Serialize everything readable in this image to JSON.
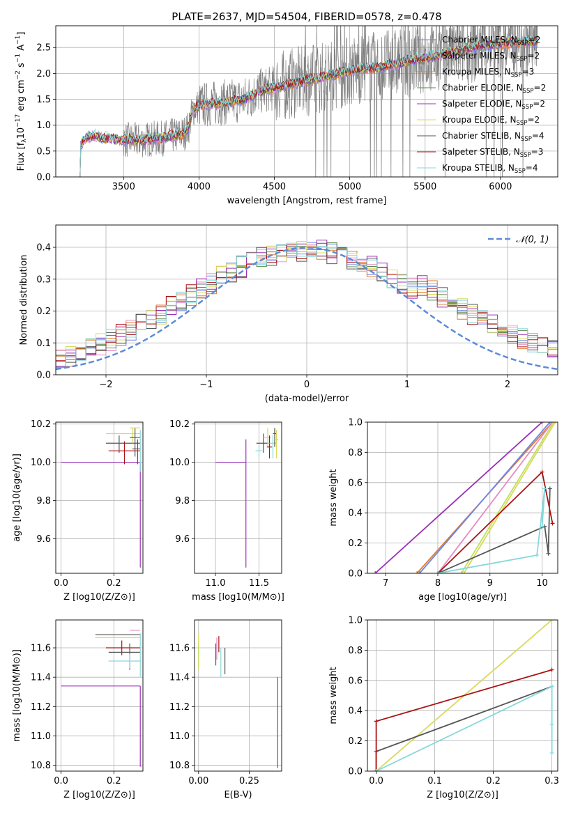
{
  "figure_title": "PLATE=2637, MJD=54504, FIBERID=0578, z=0.478",
  "colors": {
    "chabrier_miles": "#6f86e0",
    "salpeter_miles": "#e58ac6",
    "kroupa_miles": "#e07b2e",
    "chabrier_elodie": "#5a8a4a",
    "salpeter_elodie": "#9b30b8",
    "kroupa_elodie": "#d8da5a",
    "chabrier_stelib": "#555555",
    "salpeter_stelib": "#aa1414",
    "kroupa_stelib": "#86d8dc",
    "data": "#808080",
    "normal": "#5b8bd8",
    "lime": "#c0e060"
  },
  "chart_data": [
    {
      "type": "line",
      "panel": "spectrum",
      "xlabel": "wavelength [Angstrom, rest frame]",
      "ylabel": "Flux [f_λ 10^-17 erg cm^-2 s^-1 A^-1]",
      "xlim": [
        3050,
        6380
      ],
      "ylim": [
        0,
        2.92
      ],
      "xticks": [
        "3500",
        "4000",
        "4500",
        "5000",
        "5500",
        "6000"
      ],
      "yticks": [
        "0.0",
        "0.5",
        "1.0",
        "1.5",
        "2.0",
        "2.5"
      ],
      "legend_position": "right",
      "series": [
        {
          "name": "Chabrier MILES, N",
          "sub": "SSP",
          "suffix": "=2",
          "color_key": "chabrier_miles"
        },
        {
          "name": "Salpeter MILES, N",
          "sub": "SSP",
          "suffix": "=2",
          "color_key": "salpeter_miles"
        },
        {
          "name": "Kroupa MILES, N",
          "sub": "SSP",
          "suffix": "=3",
          "color_key": "kroupa_miles"
        },
        {
          "name": "Chabrier ELODIE, N",
          "sub": "SSP",
          "suffix": "=2",
          "color_key": "chabrier_elodie"
        },
        {
          "name": "Salpeter ELODIE, N",
          "sub": "SSP",
          "suffix": "=2",
          "color_key": "salpeter_elodie"
        },
        {
          "name": "Kroupa ELODIE, N",
          "sub": "SSP",
          "suffix": "=2",
          "color_key": "kroupa_elodie"
        },
        {
          "name": "Chabrier STELIB, N",
          "sub": "SSP",
          "suffix": "=4",
          "color_key": "chabrier_stelib"
        },
        {
          "name": "Salpeter STELIB, N",
          "sub": "SSP",
          "suffix": "=3",
          "color_key": "salpeter_stelib"
        },
        {
          "name": "Kroupa STELIB, N",
          "sub": "SSP",
          "suffix": "=4",
          "color_key": "kroupa_stelib"
        }
      ],
      "model_continuum": [
        [
          3210,
          0.0
        ],
        [
          3215,
          0.62
        ],
        [
          3260,
          0.78
        ],
        [
          3300,
          0.8
        ],
        [
          3350,
          0.76
        ],
        [
          3400,
          0.74
        ],
        [
          3450,
          0.72
        ],
        [
          3500,
          0.72
        ],
        [
          3550,
          0.71
        ],
        [
          3600,
          0.7
        ],
        [
          3650,
          0.72
        ],
        [
          3700,
          0.74
        ],
        [
          3750,
          0.74
        ],
        [
          3800,
          0.79
        ],
        [
          3850,
          0.8
        ],
        [
          3900,
          0.84
        ],
        [
          3930,
          0.95
        ],
        [
          3960,
          1.3
        ],
        [
          4000,
          1.38
        ],
        [
          4100,
          1.42
        ],
        [
          4200,
          1.45
        ],
        [
          4300,
          1.5
        ],
        [
          4400,
          1.65
        ],
        [
          4500,
          1.72
        ],
        [
          4600,
          1.8
        ],
        [
          4700,
          1.85
        ],
        [
          4800,
          1.92
        ],
        [
          4900,
          1.98
        ],
        [
          5000,
          2.05
        ],
        [
          5100,
          2.1
        ],
        [
          5200,
          2.12
        ],
        [
          5300,
          2.18
        ],
        [
          5400,
          2.25
        ],
        [
          5500,
          2.3
        ],
        [
          5600,
          2.36
        ],
        [
          5700,
          2.42
        ],
        [
          5800,
          2.5
        ],
        [
          5900,
          2.55
        ],
        [
          6000,
          2.58
        ],
        [
          6100,
          2.6
        ],
        [
          6200,
          2.62
        ],
        [
          6250,
          2.62
        ]
      ]
    },
    {
      "type": "histogram",
      "panel": "residuals",
      "xlabel": "(data-model)/error",
      "ylabel": "Normed distribution",
      "xlim": [
        -2.5,
        2.5
      ],
      "ylim": [
        0,
        0.47
      ],
      "xticks": [
        "−2",
        "−1",
        "0",
        "1",
        "2"
      ],
      "yticks": [
        "0.0",
        "0.1",
        "0.2",
        "0.3",
        "0.4"
      ],
      "legend": "𝒩(0, 1)",
      "legend_position": "upper right",
      "bin_width": 0.1
    },
    {
      "type": "scatter",
      "panel": "age-vs-Z",
      "xlabel": "Z [log10(Z/Z⊙)]",
      "ylabel": "age  [log10(age/yr)]",
      "xlim": [
        -0.02,
        0.31
      ],
      "ylim": [
        9.42,
        10.21
      ],
      "xticks": [
        "0.0",
        "0.2"
      ],
      "yticks": [
        "9.6",
        "9.8",
        "10.0",
        "10.2"
      ],
      "points": [
        {
          "x": 0.0,
          "xerr": [
            0.0,
            0.3
          ],
          "y": 10.0,
          "yerr": [
            0.0,
            0.0
          ],
          "color_key": "salpeter_elodie"
        },
        {
          "x": 0.3,
          "xerr": [
            0.0,
            0.0
          ],
          "y": 10.0,
          "yerr": [
            0.55,
            0.0
          ],
          "color_key": "salpeter_elodie"
        },
        {
          "x": 0.22,
          "xerr": [
            0.05,
            0.08
          ],
          "y": 10.1,
          "yerr": [
            0.05,
            0.04
          ],
          "color_key": "chabrier_stelib"
        },
        {
          "x": 0.24,
          "xerr": [
            0.06,
            0.06
          ],
          "y": 10.06,
          "yerr": [
            0.07,
            0.05
          ],
          "color_key": "salpeter_stelib"
        },
        {
          "x": 0.27,
          "xerr": [
            0.1,
            0.03
          ],
          "y": 10.15,
          "yerr": [
            0.05,
            0.03
          ],
          "color_key": "kroupa_elodie"
        },
        {
          "x": 0.28,
          "xerr": [
            0.02,
            0.02
          ],
          "y": 10.13,
          "yerr": [
            0.1,
            0.05
          ],
          "color_key": "chabrier_stelib"
        },
        {
          "x": 0.3,
          "xerr": [
            0.0,
            0.0
          ],
          "y": 10.1,
          "yerr": [
            0.15,
            0.07
          ],
          "color_key": "kroupa_stelib"
        },
        {
          "x": 0.29,
          "xerr": [
            0.03,
            0.01
          ],
          "y": 10.18,
          "yerr": [
            0.0,
            0.0
          ],
          "color_key": "kroupa_elodie"
        },
        {
          "x": 0.29,
          "xerr": [
            0.02,
            0.01
          ],
          "y": 10.07,
          "yerr": [
            0.08,
            0.05
          ],
          "color_key": "chabrier_stelib"
        }
      ]
    },
    {
      "type": "scatter",
      "panel": "age-vs-mass",
      "xlabel": "mass [log10(M/M⊙)]",
      "ylabel": "",
      "xlim": [
        10.76,
        11.76
      ],
      "ylim": [
        9.42,
        10.21
      ],
      "xticks": [
        "11.0",
        "11.5"
      ],
      "yticks": [
        "9.6",
        "9.8",
        "10.0",
        "10.2"
      ],
      "points": [
        {
          "x": 11.0,
          "xerr": [
            0.0,
            0.35
          ],
          "y": 10.0,
          "yerr": [
            0.0,
            0.0
          ],
          "color_key": "salpeter_elodie"
        },
        {
          "x": 11.35,
          "xerr": [
            0.0,
            0.0
          ],
          "y": 10.0,
          "yerr": [
            0.55,
            0.12
          ],
          "color_key": "salpeter_elodie"
        },
        {
          "x": 11.55,
          "xerr": [
            0.08,
            0.06
          ],
          "y": 10.1,
          "yerr": [
            0.05,
            0.05
          ],
          "color_key": "chabrier_stelib"
        },
        {
          "x": 11.6,
          "xerr": [
            0.05,
            0.04
          ],
          "y": 10.13,
          "yerr": [
            0.05,
            0.05
          ],
          "color_key": "kroupa_elodie"
        },
        {
          "x": 11.62,
          "xerr": [
            0.03,
            0.03
          ],
          "y": 10.08,
          "yerr": [
            0.06,
            0.06
          ],
          "color_key": "salpeter_stelib"
        },
        {
          "x": 11.66,
          "xerr": [
            0.04,
            0.04
          ],
          "y": 10.1,
          "yerr": [
            0.08,
            0.04
          ],
          "color_key": "kroupa_stelib"
        },
        {
          "x": 11.68,
          "xerr": [
            0.02,
            0.02
          ],
          "y": 10.15,
          "yerr": [
            0.07,
            0.03
          ],
          "color_key": "chabrier_stelib"
        },
        {
          "x": 11.7,
          "xerr": [
            0.02,
            0.02
          ],
          "y": 10.12,
          "yerr": [
            0.1,
            0.05
          ],
          "color_key": "kroupa_elodie"
        },
        {
          "x": 11.5,
          "xerr": [
            0.04,
            0.04
          ],
          "y": 10.06,
          "yerr": [
            0.03,
            0.03
          ],
          "color_key": "kroupa_stelib"
        }
      ]
    },
    {
      "type": "line",
      "panel": "weight-vs-age",
      "xlabel": "age  [log10(age/yr)]",
      "ylabel": "mass weight",
      "xlim": [
        6.65,
        10.3
      ],
      "ylim": [
        0,
        1.0
      ],
      "xticks": [
        "7",
        "8",
        "9",
        "10"
      ],
      "yticks": [
        "0.0",
        "0.2",
        "0.4",
        "0.6",
        "0.8",
        "1.0"
      ],
      "series": [
        {
          "color_key": "salpeter_elodie",
          "points": [
            [
              6.8,
              0.0
            ],
            [
              10.0,
              1.0
            ]
          ]
        },
        {
          "color_key": "kroupa_miles",
          "points": [
            [
              7.6,
              0.0
            ],
            [
              10.2,
              1.0
            ]
          ]
        },
        {
          "color_key": "chabrier_miles",
          "points": [
            [
              7.65,
              0.0
            ],
            [
              10.15,
              1.0
            ]
          ]
        },
        {
          "color_key": "salpeter_miles",
          "points": [
            [
              8.0,
              0.0
            ],
            [
              10.2,
              1.0
            ]
          ]
        },
        {
          "color_key": "kroupa_elodie",
          "points": [
            [
              8.5,
              0.0
            ],
            [
              10.25,
              1.0
            ]
          ]
        },
        {
          "color_key": "lime",
          "points": [
            [
              8.45,
              0.0
            ],
            [
              10.22,
              1.0
            ]
          ]
        },
        {
          "color_key": "salpeter_stelib",
          "points": [
            [
              8.0,
              0.0
            ],
            [
              10.0,
              0.67
            ],
            [
              10.2,
              0.33
            ]
          ]
        },
        {
          "color_key": "chabrier_stelib",
          "points": [
            [
              8.0,
              0.0
            ],
            [
              10.05,
              0.31
            ],
            [
              10.12,
              0.13
            ],
            [
              10.15,
              0.56
            ]
          ]
        },
        {
          "color_key": "kroupa_stelib",
          "points": [
            [
              8.0,
              0.0
            ],
            [
              9.9,
              0.12
            ],
            [
              10.05,
              0.56
            ],
            [
              10.0,
              0.31
            ]
          ]
        }
      ]
    },
    {
      "type": "scatter",
      "panel": "mass-vs-Z",
      "xlabel": "Z [log10(Z/Z⊙)]",
      "ylabel": "mass [log10(M/M⊙)]",
      "xlim": [
        -0.02,
        0.31
      ],
      "ylim": [
        10.76,
        11.79
      ],
      "xticks": [
        "0.0",
        "0.2"
      ],
      "yticks": [
        "10.8",
        "11.0",
        "11.2",
        "11.4",
        "11.6"
      ],
      "points": [
        {
          "x": 0.0,
          "xerr": [
            0.0,
            0.3
          ],
          "y": 11.34,
          "yerr": [
            0.0,
            0.0
          ],
          "color_key": "salpeter_elodie"
        },
        {
          "x": 0.3,
          "xerr": [
            0.0,
            0.0
          ],
          "y": 11.34,
          "yerr": [
            0.55,
            0.0
          ],
          "color_key": "salpeter_elodie"
        },
        {
          "x": 0.21,
          "xerr": [
            0.08,
            0.09
          ],
          "y": 11.69,
          "yerr": [
            0.0,
            0.0
          ],
          "color_key": "chabrier_stelib"
        },
        {
          "x": 0.22,
          "xerr": [
            0.09,
            0.08
          ],
          "y": 11.67,
          "yerr": [
            0.0,
            0.0
          ],
          "color_key": "kroupa_elodie"
        },
        {
          "x": 0.23,
          "xerr": [
            0.06,
            0.07
          ],
          "y": 11.6,
          "yerr": [
            0.05,
            0.05
          ],
          "color_key": "salpeter_stelib"
        },
        {
          "x": 0.26,
          "xerr": [
            0.08,
            0.04
          ],
          "y": 11.57,
          "yerr": [
            0.12,
            0.06
          ],
          "color_key": "chabrier_stelib"
        },
        {
          "x": 0.26,
          "xerr": [
            0.08,
            0.04
          ],
          "y": 11.51,
          "yerr": [
            0.05,
            0.05
          ],
          "color_key": "kroupa_stelib"
        },
        {
          "x": 0.29,
          "xerr": [
            0.03,
            0.01
          ],
          "y": 11.72,
          "yerr": [
            0.0,
            0.0
          ],
          "color_key": "salpeter_miles"
        },
        {
          "x": 0.3,
          "xerr": [
            0.0,
            0.0
          ],
          "y": 11.6,
          "yerr": [
            0.2,
            0.1
          ],
          "color_key": "kroupa_stelib"
        }
      ]
    },
    {
      "type": "scatter",
      "panel": "mass-vs-EBV",
      "xlabel": "E(B-V)",
      "ylabel": "",
      "xlim": [
        -0.02,
        0.41
      ],
      "ylim": [
        10.76,
        11.79
      ],
      "xticks": [
        "0.00",
        "0.25"
      ],
      "yticks": [
        "10.8",
        "11.0",
        "11.2",
        "11.4",
        "11.6"
      ],
      "points": [
        {
          "x": 0.0,
          "y": 11.6,
          "yerr": [
            0.15,
            0.1
          ],
          "color_key": "kroupa_elodie"
        },
        {
          "x": 0.0,
          "y": 11.55,
          "yerr": [
            0.08,
            0.08
          ],
          "color_key": "lime"
        },
        {
          "x": 0.085,
          "y": 11.58,
          "yerr": [
            0.1,
            0.05
          ],
          "color_key": "chabrier_stelib"
        },
        {
          "x": 0.09,
          "y": 11.6,
          "yerr": [
            0.08,
            0.07
          ],
          "color_key": "salpeter_miles"
        },
        {
          "x": 0.1,
          "y": 11.62,
          "yerr": [
            0.05,
            0.06
          ],
          "color_key": "salpeter_stelib"
        },
        {
          "x": 0.11,
          "y": 11.55,
          "yerr": [
            0.15,
            0.05
          ],
          "color_key": "kroupa_stelib"
        },
        {
          "x": 0.13,
          "y": 11.5,
          "yerr": [
            0.08,
            0.1
          ],
          "color_key": "chabrier_stelib"
        },
        {
          "x": 0.39,
          "y": 11.1,
          "yerr": [
            0.32,
            0.3
          ],
          "color_key": "salpeter_elodie"
        }
      ]
    },
    {
      "type": "line",
      "panel": "weight-vs-Z",
      "xlabel": "Z [log10(Z/Z⊙)]",
      "ylabel": "mass weight",
      "xlim": [
        -0.015,
        0.31
      ],
      "ylim": [
        0,
        1.0
      ],
      "xticks": [
        "0.0",
        "0.1",
        "0.2",
        "0.3"
      ],
      "yticks": [
        "0.0",
        "0.2",
        "0.4",
        "0.6",
        "0.8",
        "1.0"
      ],
      "series": [
        {
          "color_key": "kroupa_elodie",
          "points": [
            [
              0.0,
              0.0
            ],
            [
              0.3,
              1.0
            ]
          ]
        },
        {
          "color_key": "chabrier_stelib",
          "points": [
            [
              0.0,
              0.0
            ],
            [
              0.0,
              0.13
            ],
            [
              0.3,
              0.56
            ]
          ]
        },
        {
          "color_key": "salpeter_stelib",
          "points": [
            [
              0.0,
              0.0
            ],
            [
              0.0,
              0.33
            ],
            [
              0.3,
              0.67
            ]
          ]
        },
        {
          "color_key": "kroupa_stelib",
          "points": [
            [
              0.0,
              0.0
            ],
            [
              0.3,
              0.56
            ],
            [
              0.3,
              0.31
            ],
            [
              0.3,
              0.12
            ]
          ]
        }
      ]
    }
  ]
}
